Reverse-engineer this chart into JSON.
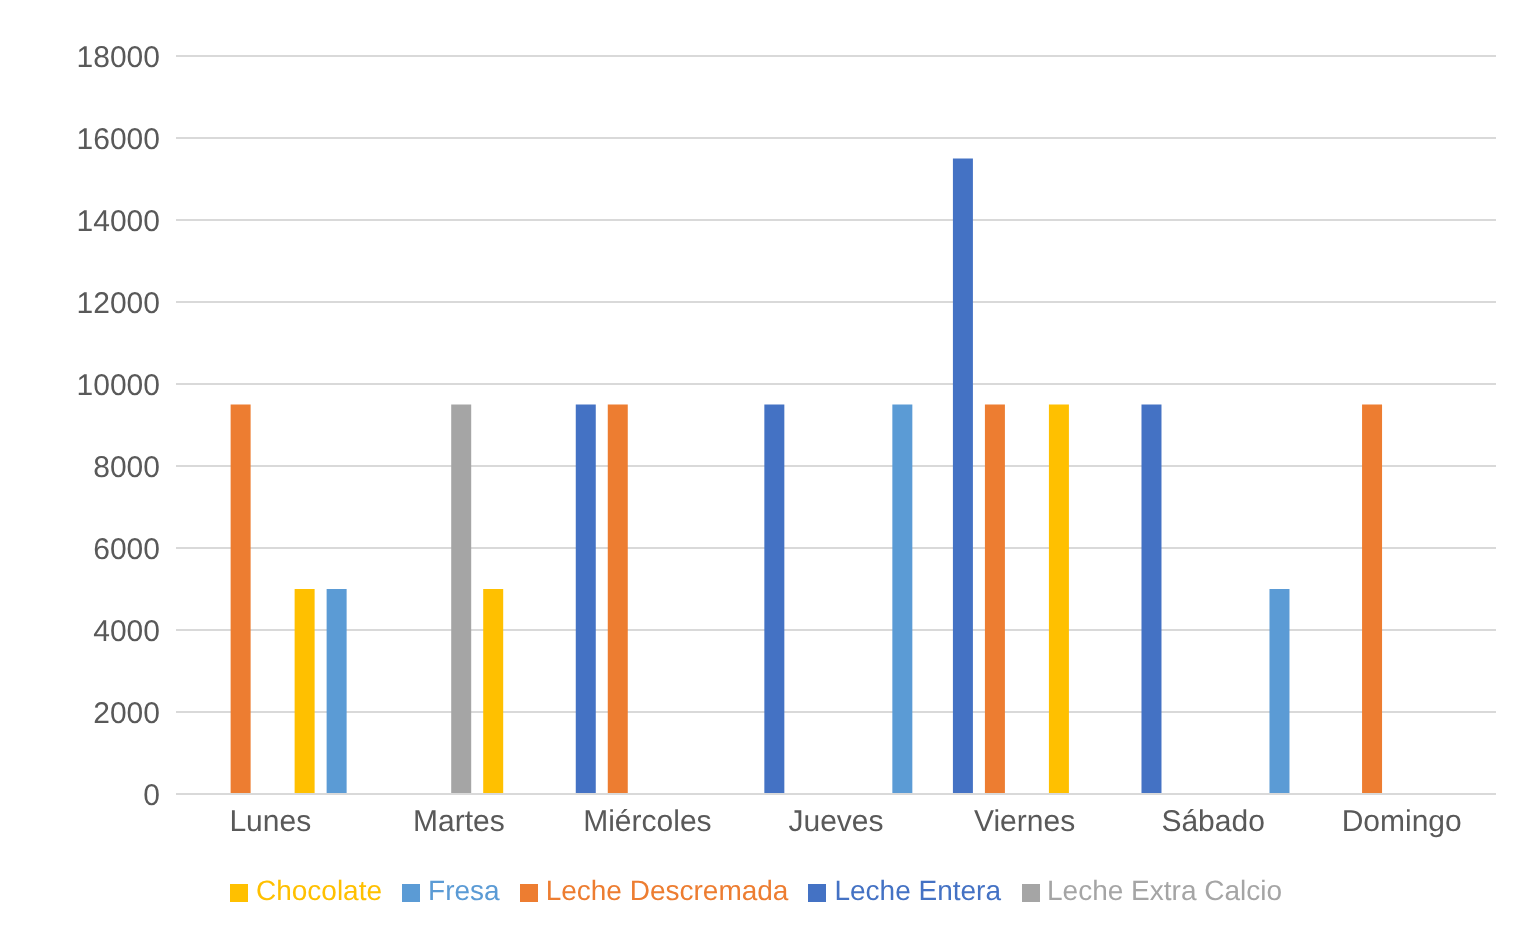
{
  "chart_data": {
    "type": "bar",
    "categories": [
      "Lunes",
      "Martes",
      "Miércoles",
      "Jueves",
      "Viernes",
      "Sábado",
      "Domingo"
    ],
    "series": [
      {
        "name": "Leche Entera",
        "color": "#4472c4",
        "values": [
          null,
          null,
          9500,
          9500,
          15500,
          9500,
          null
        ]
      },
      {
        "name": "Leche Descremada",
        "color": "#ed7d31",
        "values": [
          9500,
          null,
          9500,
          null,
          9500,
          null,
          9500
        ]
      },
      {
        "name": "Leche Extra Calcio",
        "color": "#a5a5a5",
        "values": [
          null,
          9500,
          null,
          null,
          null,
          null,
          null
        ]
      },
      {
        "name": "Chocolate",
        "color": "#ffc000",
        "values": [
          5000,
          5000,
          null,
          null,
          9500,
          null,
          null
        ]
      },
      {
        "name": "Fresa",
        "color": "#5b9bd5",
        "values": [
          5000,
          null,
          null,
          9500,
          null,
          5000,
          null
        ]
      }
    ],
    "ylim": [
      0,
      18000
    ],
    "yticks": [
      0,
      2000,
      4000,
      6000,
      8000,
      10000,
      12000,
      14000,
      16000,
      18000
    ],
    "grid": "y",
    "legend": "bottom"
  }
}
